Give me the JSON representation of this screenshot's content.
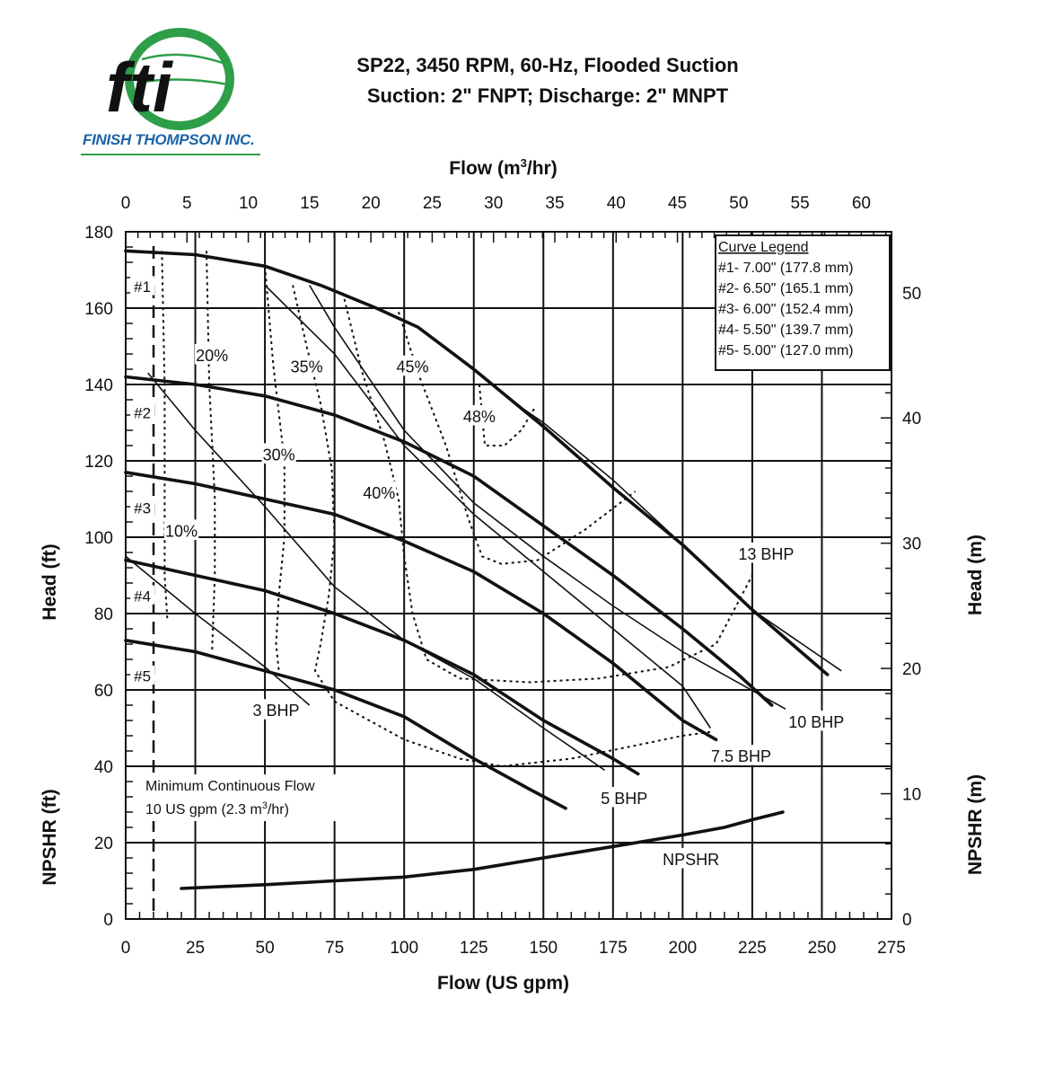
{
  "header": {
    "title_line1": "SP22, 3450 RPM, 60-Hz, Flooded Suction",
    "title_line2": "Suction: 2\" FNPT; Discharge: 2\" MNPT"
  },
  "logo": {
    "letters": "fti",
    "company": "FINISH THOMPSON INC.",
    "colors": {
      "blue": "#1b64a8",
      "green": "#2f9e48"
    }
  },
  "chart_data": {
    "type": "line",
    "axes": {
      "x_bottom": {
        "label": "Flow (US gpm)",
        "range": [
          0,
          275
        ],
        "ticks": [
          "0",
          "25",
          "50",
          "75",
          "100",
          "125",
          "150",
          "175",
          "200",
          "225",
          "250",
          "275"
        ]
      },
      "x_top": {
        "label": "Flow (m",
        "label_sup": "3",
        "label_suffix": "/hr)",
        "range": [
          0,
          62.46
        ],
        "ticks": [
          "0",
          "5",
          "10",
          "15",
          "20",
          "25",
          "30",
          "35",
          "40",
          "45",
          "50",
          "55",
          "60"
        ]
      },
      "y_left": {
        "label_head": "Head (ft)",
        "label_npshr": "NPSHR (ft)",
        "range": [
          0,
          180
        ],
        "ticks": [
          "0",
          "20",
          "40",
          "60",
          "80",
          "100",
          "120",
          "140",
          "160",
          "180"
        ]
      },
      "y_right": {
        "label_head": "Head (m)",
        "label_npshr": "NPSHR (m)",
        "range": [
          0,
          54.86
        ],
        "ticks": [
          "0",
          "10",
          "20",
          "30",
          "40",
          "50"
        ]
      }
    },
    "grid": true,
    "legend": {
      "title": "Curve Legend",
      "placement": "top-right",
      "entries": [
        "#1- 7.00\" (177.8 mm)",
        "#2- 6.50\" (165.1 mm)",
        "#3- 6.00\" (152.4 mm)",
        "#4- 5.50\" (139.7 mm)",
        "#5- 5.00\" (127.0 mm)"
      ]
    },
    "impeller_curves": [
      {
        "name": "#1",
        "points": [
          [
            0,
            175
          ],
          [
            25,
            174
          ],
          [
            50,
            171
          ],
          [
            70,
            166
          ],
          [
            90,
            160
          ],
          [
            105,
            155
          ],
          [
            125,
            144
          ],
          [
            150,
            129
          ],
          [
            175,
            113
          ],
          [
            200,
            98
          ],
          [
            225,
            81
          ],
          [
            252,
            64
          ]
        ]
      },
      {
        "name": "#2",
        "points": [
          [
            0,
            142
          ],
          [
            25,
            140
          ],
          [
            50,
            137
          ],
          [
            75,
            132
          ],
          [
            100,
            125
          ],
          [
            125,
            116
          ],
          [
            150,
            103
          ],
          [
            175,
            90
          ],
          [
            200,
            76
          ],
          [
            220,
            64
          ],
          [
            232,
            56
          ]
        ]
      },
      {
        "name": "#3",
        "points": [
          [
            0,
            117
          ],
          [
            25,
            114
          ],
          [
            50,
            110
          ],
          [
            75,
            106
          ],
          [
            100,
            99
          ],
          [
            125,
            91
          ],
          [
            150,
            80
          ],
          [
            175,
            67
          ],
          [
            200,
            52
          ],
          [
            212,
            47
          ]
        ]
      },
      {
        "name": "#4",
        "points": [
          [
            0,
            94
          ],
          [
            25,
            90
          ],
          [
            50,
            86
          ],
          [
            75,
            80
          ],
          [
            100,
            73
          ],
          [
            125,
            64
          ],
          [
            150,
            52
          ],
          [
            175,
            42
          ],
          [
            184,
            38
          ]
        ]
      },
      {
        "name": "#5",
        "points": [
          [
            0,
            73
          ],
          [
            25,
            70
          ],
          [
            50,
            65
          ],
          [
            75,
            60
          ],
          [
            100,
            53
          ],
          [
            125,
            42
          ],
          [
            145,
            34
          ],
          [
            158,
            29
          ]
        ]
      }
    ],
    "efficiency_curves": [
      {
        "name": "10%",
        "label_at": [
          20,
          101
        ],
        "points": [
          [
            13,
            175
          ],
          [
            14,
            140
          ],
          [
            14,
            110
          ],
          [
            14,
            90
          ],
          [
            15,
            78
          ]
        ]
      },
      {
        "name": "20%",
        "label_at": [
          31,
          147
        ],
        "points": [
          [
            29,
            175
          ],
          [
            30,
            140
          ],
          [
            32,
            110
          ],
          [
            32,
            90
          ],
          [
            31,
            70
          ]
        ]
      },
      {
        "name": "30%",
        "label_at": [
          55,
          121
        ],
        "points": [
          [
            50,
            171
          ],
          [
            53,
            145
          ],
          [
            57,
            120
          ],
          [
            57,
            100
          ],
          [
            55,
            85
          ],
          [
            54,
            72
          ],
          [
            55,
            65
          ]
        ]
      },
      {
        "name": "35%",
        "label_at": [
          65,
          144
        ],
        "points": [
          [
            60,
            166
          ],
          [
            65,
            150
          ],
          [
            70,
            135
          ],
          [
            74,
            118
          ],
          [
            75,
            100
          ],
          [
            73,
            85
          ],
          [
            70,
            72
          ],
          [
            68,
            65
          ],
          [
            75,
            57
          ],
          [
            100,
            47
          ],
          [
            120,
            42
          ],
          [
            135,
            40
          ],
          [
            160,
            42
          ],
          [
            180,
            45
          ],
          [
            200,
            48
          ],
          [
            210,
            49
          ]
        ]
      },
      {
        "name": "40%",
        "label_at": [
          91,
          111
        ],
        "points": [
          [
            78,
            164
          ],
          [
            85,
            143
          ],
          [
            93,
            125
          ],
          [
            98,
            110
          ],
          [
            100,
            95
          ],
          [
            103,
            80
          ],
          [
            108,
            68
          ],
          [
            120,
            63
          ],
          [
            145,
            62
          ],
          [
            170,
            63
          ],
          [
            195,
            66
          ],
          [
            212,
            72
          ],
          [
            225,
            90
          ]
        ]
      },
      {
        "name": "45%",
        "label_at": [
          103,
          144
        ],
        "points": [
          [
            98,
            159
          ],
          [
            105,
            143
          ],
          [
            115,
            124
          ],
          [
            123,
            105
          ],
          [
            128,
            95
          ],
          [
            135,
            93
          ],
          [
            148,
            94
          ],
          [
            165,
            102
          ],
          [
            183,
            112
          ]
        ]
      },
      {
        "name": "48%",
        "label_at": [
          127,
          131
        ],
        "points": [
          [
            127,
            140
          ],
          [
            129,
            124
          ],
          [
            136,
            124
          ],
          [
            142,
            128
          ],
          [
            147,
            134
          ]
        ]
      }
    ],
    "bhp_curves": [
      {
        "name": "3 BHP",
        "label_at": [
          54,
          54
        ],
        "points": [
          [
            0,
            95
          ],
          [
            25,
            80
          ],
          [
            50,
            66
          ],
          [
            66,
            56
          ]
        ]
      },
      {
        "name": "5 BHP",
        "label_at": [
          179,
          31
        ],
        "points": [
          [
            8,
            143
          ],
          [
            25,
            128
          ],
          [
            50,
            108
          ],
          [
            75,
            87
          ],
          [
            100,
            73
          ],
          [
            125,
            63
          ],
          [
            150,
            50
          ],
          [
            172,
            39
          ]
        ]
      },
      {
        "name": "7.5 BHP",
        "label_at": [
          221,
          42
        ],
        "points": [
          [
            50,
            166
          ],
          [
            75,
            148
          ],
          [
            100,
            124
          ],
          [
            125,
            106
          ],
          [
            150,
            91
          ],
          [
            175,
            76
          ],
          [
            200,
            61
          ],
          [
            210,
            50
          ]
        ]
      },
      {
        "name": "10 BHP",
        "label_at": [
          248,
          51
        ],
        "points": [
          [
            66,
            166
          ],
          [
            75,
            155
          ],
          [
            100,
            128
          ],
          [
            125,
            109
          ],
          [
            150,
            95
          ],
          [
            175,
            82
          ],
          [
            200,
            70
          ],
          [
            237,
            55
          ]
        ]
      },
      {
        "name": "13 BHP",
        "label_at": [
          230,
          95
        ],
        "points": [
          [
            140,
            135
          ],
          [
            150,
            130
          ],
          [
            175,
            115
          ],
          [
            200,
            98
          ],
          [
            225,
            81
          ],
          [
            257,
            65
          ]
        ]
      }
    ],
    "npshr_curve": {
      "name": "NPSHR",
      "label_at": [
        203,
        15
      ],
      "points": [
        [
          20,
          8
        ],
        [
          50,
          9
        ],
        [
          75,
          10
        ],
        [
          100,
          11
        ],
        [
          125,
          13
        ],
        [
          150,
          16
        ],
        [
          175,
          19
        ],
        [
          200,
          22
        ],
        [
          215,
          24
        ],
        [
          225,
          26
        ],
        [
          236,
          28
        ]
      ]
    },
    "min_flow": {
      "value_gpm": 10,
      "label_line1": "Minimum Continuous Flow",
      "label_line2_prefix": "10 US gpm (2.3 m",
      "label_line2_sup": "3",
      "label_line2_suffix": "/hr)"
    }
  }
}
